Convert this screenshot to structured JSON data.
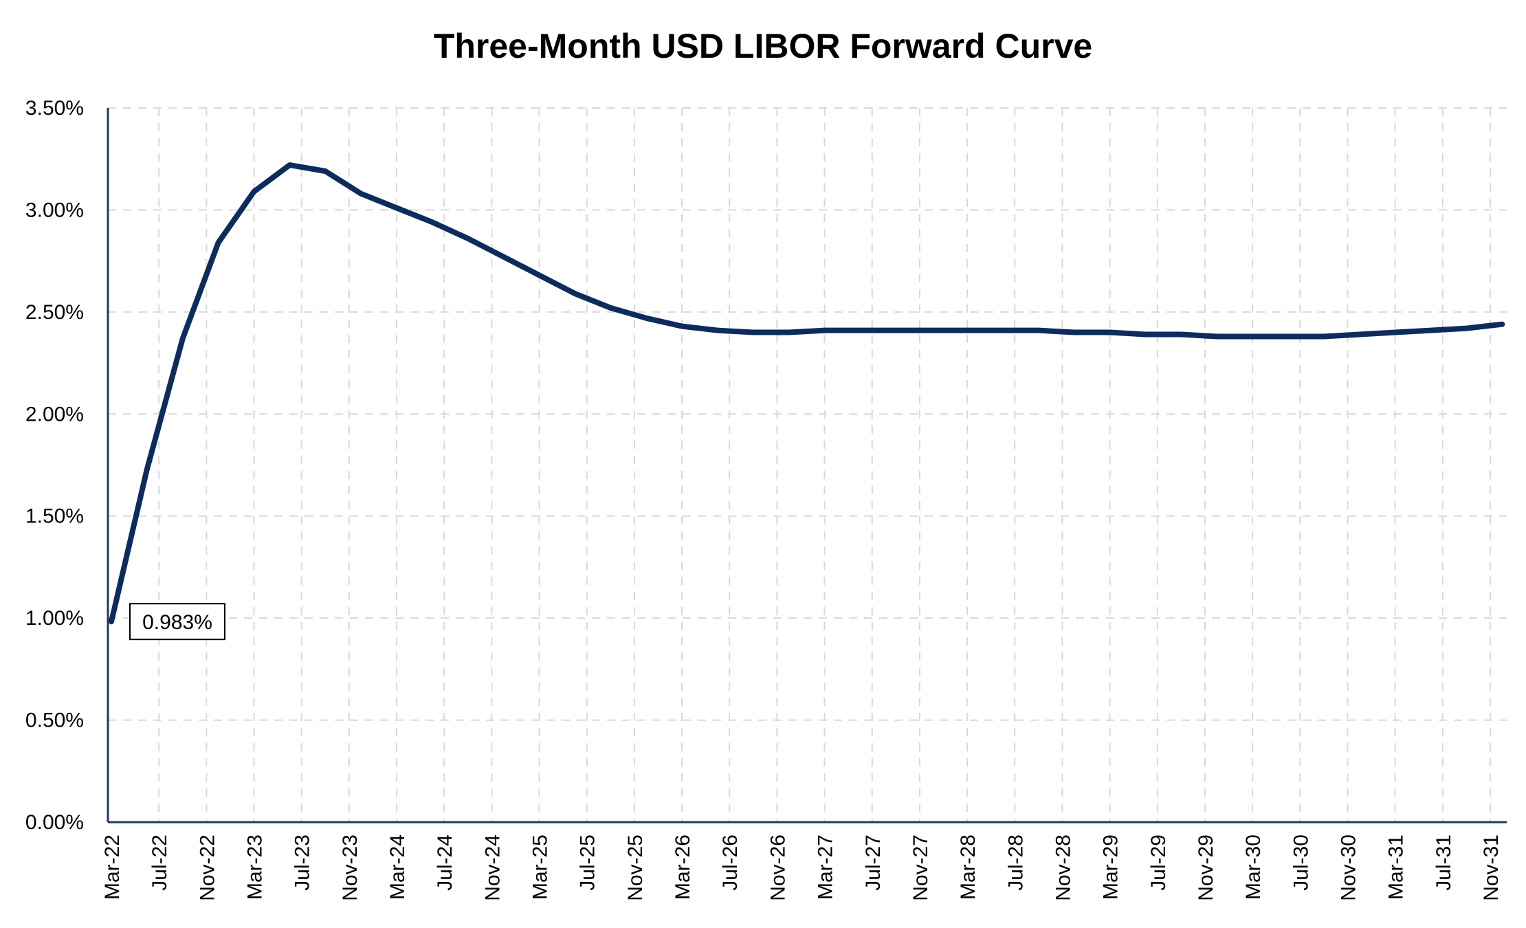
{
  "chart_data": {
    "type": "line",
    "title": "Three-Month USD LIBOR Forward Curve",
    "xlabel": "",
    "ylabel": "",
    "ylim": [
      0,
      3.5
    ],
    "yticks": [
      "0.00%",
      "0.50%",
      "1.00%",
      "1.50%",
      "2.00%",
      "2.50%",
      "3.00%",
      "3.50%"
    ],
    "xticks": [
      "Mar-22",
      "Jul-22",
      "Nov-22",
      "Mar-23",
      "Jul-23",
      "Nov-23",
      "Mar-24",
      "Jul-24",
      "Nov-24",
      "Mar-25",
      "Jul-25",
      "Nov-25",
      "Mar-26",
      "Jul-26",
      "Nov-26",
      "Mar-27",
      "Jul-27",
      "Nov-27",
      "Mar-28",
      "Jul-28",
      "Nov-28",
      "Mar-29",
      "Jul-29",
      "Nov-29",
      "Mar-30",
      "Jul-30",
      "Nov-30",
      "Mar-31",
      "Jul-31",
      "Nov-31"
    ],
    "grid": true,
    "legend": "none",
    "series": [
      {
        "color": "#0d2b5c",
        "x": [
          "Mar-22",
          "Jun-22",
          "Sep-22",
          "Dec-22",
          "Mar-23",
          "Jun-23",
          "Sep-23",
          "Dec-23",
          "Mar-24",
          "Jun-24",
          "Sep-24",
          "Dec-24",
          "Mar-25",
          "Jun-25",
          "Sep-25",
          "Dec-25",
          "Mar-26",
          "Jun-26",
          "Sep-26",
          "Dec-26",
          "Mar-27",
          "Jun-27",
          "Sep-27",
          "Dec-27",
          "Mar-28",
          "Jun-28",
          "Sep-28",
          "Dec-28",
          "Mar-29",
          "Jun-29",
          "Sep-29",
          "Dec-29",
          "Mar-30",
          "Jun-30",
          "Sep-30",
          "Dec-30",
          "Mar-31",
          "Jun-31",
          "Sep-31",
          "Dec-31"
        ],
        "values": [
          0.983,
          1.73,
          2.37,
          2.84,
          3.09,
          3.22,
          3.19,
          3.08,
          3.01,
          2.94,
          2.86,
          2.77,
          2.68,
          2.59,
          2.52,
          2.47,
          2.43,
          2.41,
          2.4,
          2.4,
          2.41,
          2.41,
          2.41,
          2.41,
          2.41,
          2.41,
          2.41,
          2.4,
          2.4,
          2.39,
          2.39,
          2.38,
          2.38,
          2.38,
          2.38,
          2.39,
          2.4,
          2.41,
          2.42,
          2.44
        ]
      }
    ],
    "annotations": [
      {
        "text": "0.983%",
        "x": "Mar-22",
        "y": 0.983
      }
    ]
  }
}
